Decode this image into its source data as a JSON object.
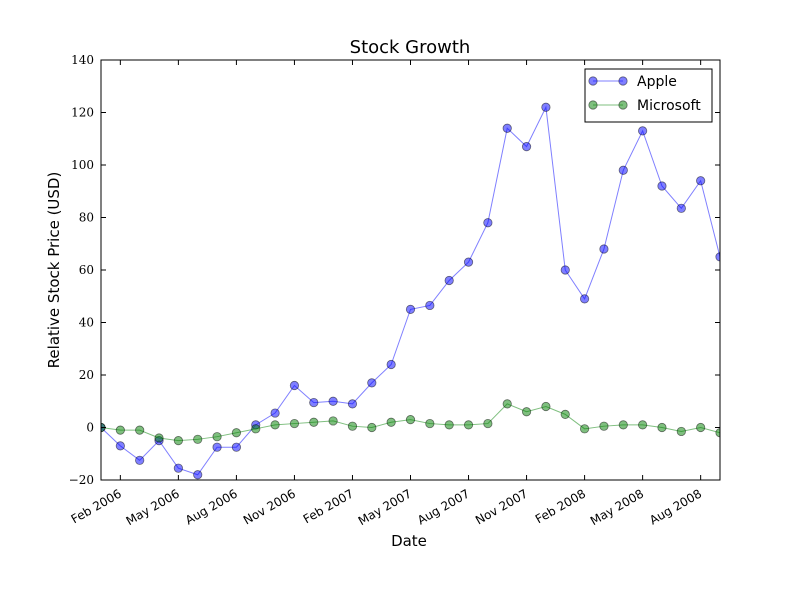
{
  "chart_data": {
    "type": "line",
    "title": "Stock Growth",
    "xlabel": "Date",
    "ylabel": "Relative Stock Price (USD)",
    "ylim": [
      -20,
      140
    ],
    "xlim": [
      "2006-01",
      "2008-09"
    ],
    "yticks": [
      "−20",
      "0",
      "20",
      "40",
      "60",
      "80",
      "100",
      "120",
      "140"
    ],
    "xticks": [
      {
        "month": "2006-02",
        "label": "Feb 2006"
      },
      {
        "month": "2006-05",
        "label": "May 2006"
      },
      {
        "month": "2006-08",
        "label": "Aug 2006"
      },
      {
        "month": "2006-11",
        "label": "Nov 2006"
      },
      {
        "month": "2007-02",
        "label": "Feb 2007"
      },
      {
        "month": "2007-05",
        "label": "May 2007"
      },
      {
        "month": "2007-08",
        "label": "Aug 2007"
      },
      {
        "month": "2007-11",
        "label": "Nov 2007"
      },
      {
        "month": "2008-02",
        "label": "Feb 2008"
      },
      {
        "month": "2008-05",
        "label": "May 2008"
      },
      {
        "month": "2008-08",
        "label": "Aug 2008"
      }
    ],
    "x": [
      "2006-01",
      "2006-02",
      "2006-03",
      "2006-04",
      "2006-05",
      "2006-06",
      "2006-07",
      "2006-08",
      "2006-09",
      "2006-10",
      "2006-11",
      "2006-12",
      "2007-01",
      "2007-02",
      "2007-03",
      "2007-04",
      "2007-05",
      "2007-06",
      "2007-07",
      "2007-08",
      "2007-09",
      "2007-10",
      "2007-11",
      "2007-12",
      "2008-01",
      "2008-02",
      "2008-03",
      "2008-04",
      "2008-05",
      "2008-06",
      "2008-07",
      "2008-08",
      "2008-09"
    ],
    "series": [
      {
        "name": "Apple",
        "color": "#0000ff",
        "values": [
          0,
          -7,
          -12.5,
          -5,
          -15.5,
          -18,
          -7.5,
          -7.5,
          1,
          5.5,
          16,
          9.5,
          10,
          9,
          17,
          24,
          45,
          46.5,
          56,
          63,
          78,
          114,
          107,
          122,
          60,
          49,
          68,
          98,
          113,
          92,
          83.5,
          94,
          65
        ]
      },
      {
        "name": "Microsoft",
        "color": "#008000",
        "values": [
          0,
          -1,
          -1,
          -4,
          -5,
          -4.5,
          -3.5,
          -2,
          -0.5,
          1,
          1.5,
          2,
          2.5,
          0.5,
          0,
          2,
          3,
          1.5,
          1,
          1,
          1.5,
          9,
          6,
          8,
          5,
          -0.5,
          0.5,
          1,
          1,
          0,
          -1.5,
          0,
          -2
        ]
      }
    ],
    "legend": {
      "position": "top-right",
      "entries": [
        "Apple",
        "Microsoft"
      ]
    },
    "grid": false
  }
}
